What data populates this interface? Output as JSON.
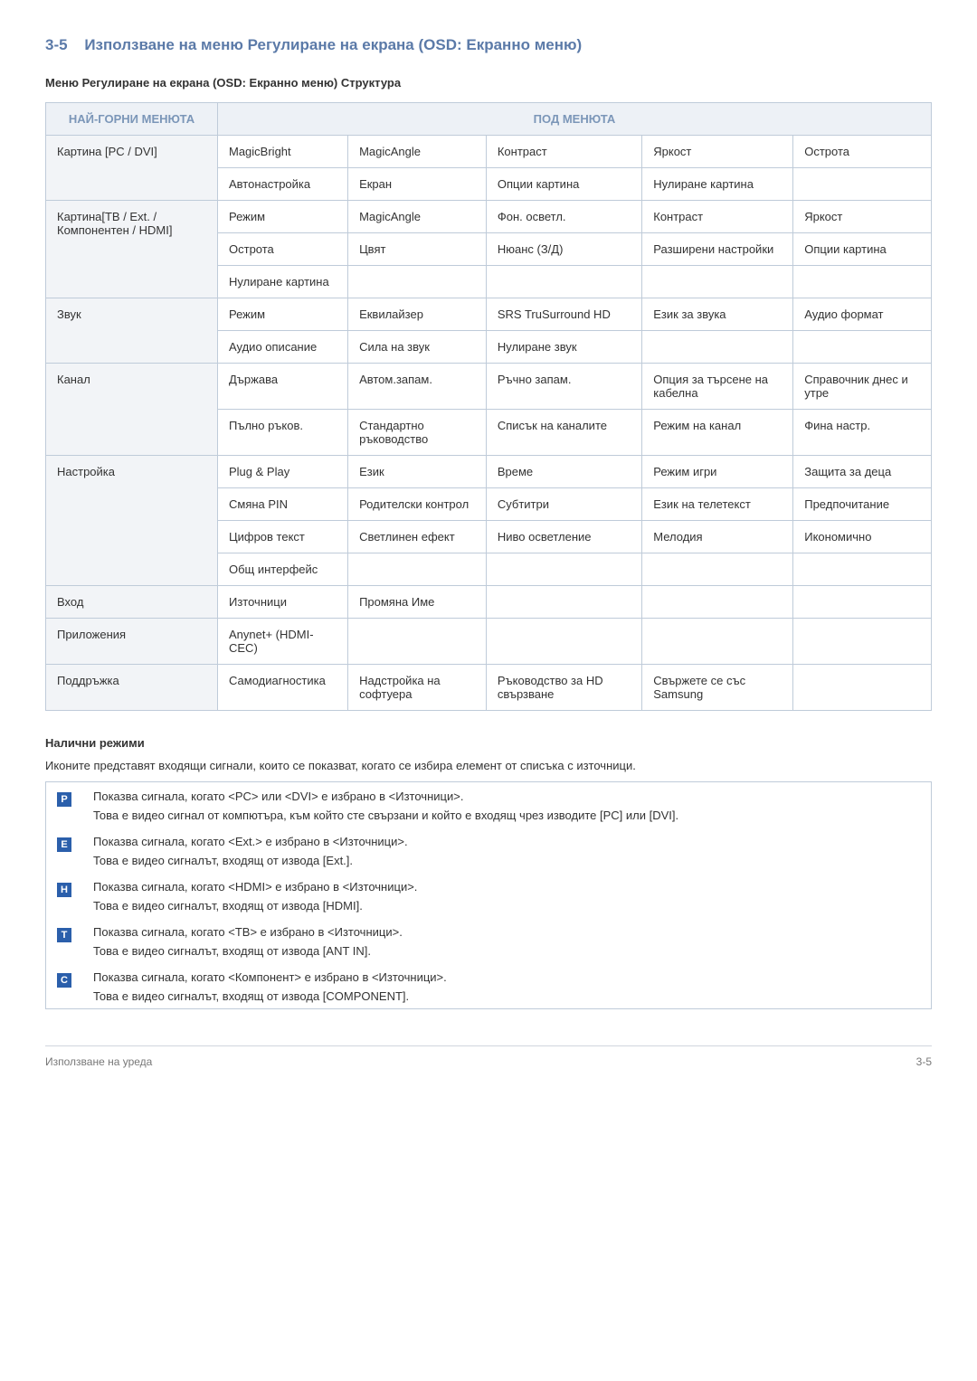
{
  "colors": {
    "accent": "#5b7aa8",
    "header_bg": "#edf1f6",
    "header_text": "#7b96b8",
    "border": "#bfcbd9",
    "rowhdr_bg": "#f2f4f7",
    "text": "#333333",
    "footer_text": "#777777",
    "icon_bg": "#2b5fab",
    "icon_fg": "#ffffff"
  },
  "typography": {
    "title_fontsize_pt": 13,
    "body_fontsize_pt": 10,
    "font_family": "Arial"
  },
  "section": {
    "number": "3-5",
    "title": "Използване на меню Регулиране на екрана (OSD: Екранно меню)"
  },
  "subtitle": "Меню Регулиране на екрана (OSD: Екранно меню) Структура",
  "table": {
    "header_top": "НАЙ-ГОРНИ МЕНЮТА",
    "header_sub": "ПОД МЕНЮТА",
    "column_widths": [
      "190px",
      "auto",
      "auto",
      "auto",
      "auto",
      "auto"
    ],
    "groups": [
      {
        "label": "Картина [PC / DVI]",
        "rows": [
          [
            "MagicBright",
            "MagicAngle",
            "Контраст",
            "Яркост",
            "Острота"
          ],
          [
            "Автонастройка",
            "Екран",
            "Опции картина",
            "Нулиране картина",
            ""
          ]
        ]
      },
      {
        "label": "Картина[ТВ / Ext. / Компонентен / HDMI]",
        "rows": [
          [
            "Режим",
            "MagicAngle",
            "Фон. осветл.",
            "Контраст",
            "Яркост"
          ],
          [
            "Острота",
            "Цвят",
            "Нюанс (З/Д)",
            "Разширени настройки",
            "Опции картина"
          ],
          [
            "Нулиране картина",
            "",
            "",
            "",
            ""
          ]
        ]
      },
      {
        "label": "Звук",
        "rows": [
          [
            "Режим",
            "Еквилайзер",
            "SRS TruSurround HD",
            "Език за звука",
            "Аудио формат"
          ],
          [
            "Аудио описание",
            "Сила на звук",
            "Нулиране звук",
            "",
            ""
          ]
        ]
      },
      {
        "label": "Канал",
        "rows": [
          [
            "Държава",
            "Автом.запам.",
            "Ръчно запам.",
            "Опция за търсене на кабелна",
            "Справочник днес и утре"
          ],
          [
            "Пълно ръков.",
            "Стандартно ръководство",
            "Списък на каналите",
            "Режим на канал",
            "Фина настр."
          ]
        ]
      },
      {
        "label": "Настройка",
        "rows": [
          [
            "Plug & Play",
            "Език",
            "Време",
            "Режим игри",
            "Защита за деца"
          ],
          [
            "Смяна PIN",
            "Родителски контрол",
            "Субтитри",
            "Език на телетекст",
            "Предпочитание"
          ],
          [
            "Цифров текст",
            "Светлинен ефект",
            "Ниво осветление",
            "Мелодия",
            "Икономично"
          ],
          [
            "Общ интерфейс",
            "",
            "",
            "",
            ""
          ]
        ]
      },
      {
        "label": "Вход",
        "rows": [
          [
            "Източници",
            "Промяна Име",
            "",
            "",
            ""
          ]
        ]
      },
      {
        "label": "Приложения",
        "rows": [
          [
            "Anynet+ (HDMI-CEC)",
            "",
            "",
            "",
            ""
          ]
        ]
      },
      {
        "label": "Поддръжка",
        "rows": [
          [
            "Самодиагностика",
            "Надстройка на софтуера",
            "Ръководство за HD свързване",
            "Свържете се със Samsung",
            ""
          ]
        ]
      }
    ]
  },
  "modes": {
    "heading": "Налични режими",
    "intro": "Иконите представят входящи сигнали, които се показват, когато се избира елемент от списъка с източници.",
    "items": [
      {
        "icon_letter": "P",
        "line1": "Показва сигнала, когато <PC> или <DVI> е избрано в <Източници>.",
        "line2": "Това е видео сигнал от компютъра, към който сте свързани и който е входящ чрез изводите [PC] или [DVI]."
      },
      {
        "icon_letter": "E",
        "line1": "Показва сигнала, когато <Ext.> е избрано в <Източници>.",
        "line2": "Това е видео сигналът, входящ от извода [Ext.]."
      },
      {
        "icon_letter": "H",
        "line1": "Показва сигнала, когато <HDMI> е избрано в <Източници>.",
        "line2": "Това е видео сигналът, входящ от извода [HDMI]."
      },
      {
        "icon_letter": "T",
        "line1": "Показва сигнала, когато <ТВ> е избрано в <Източници>.",
        "line2": "Това е видео сигналът, входящ от извода [ANT IN]."
      },
      {
        "icon_letter": "C",
        "line1": "Показва сигнала, когато <Компонент> е избрано в <Източници>.",
        "line2": "Това е видео сигналът, входящ от извода [COMPONENT]."
      }
    ]
  },
  "footer": {
    "left": "Използване на уреда",
    "right": "3-5"
  }
}
